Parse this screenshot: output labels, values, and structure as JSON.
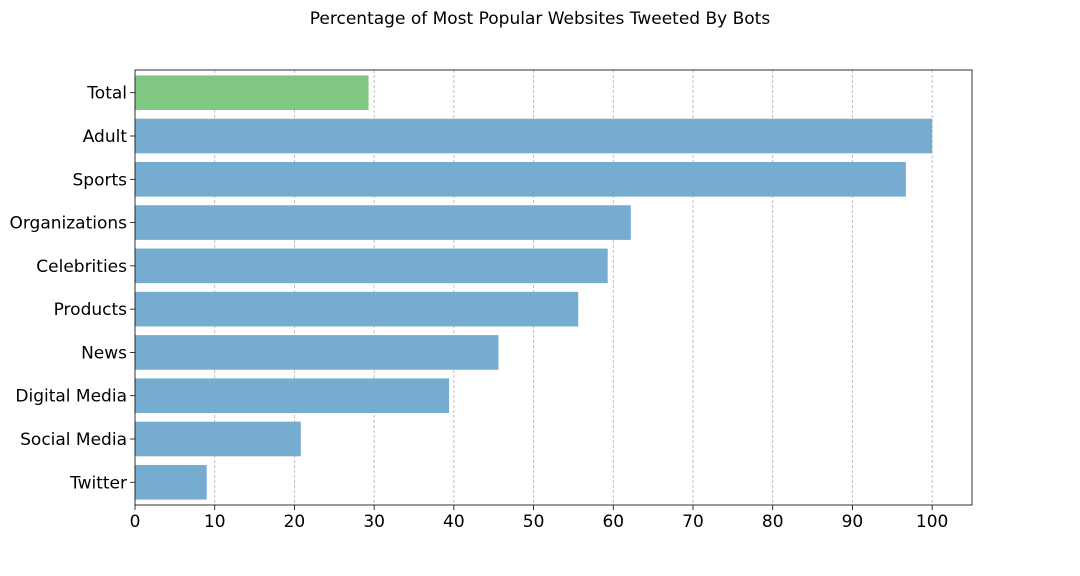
{
  "chart_data": {
    "type": "bar",
    "orientation": "horizontal",
    "title": "Percentage of Most Popular Websites Tweeted By Bots",
    "xlabel": "",
    "ylabel": "",
    "xlim": [
      0,
      105
    ],
    "xticks": [
      0,
      10,
      20,
      30,
      40,
      50,
      60,
      70,
      80,
      90,
      100
    ],
    "grid": "vertical dashed",
    "categories": [
      "Total",
      "Adult",
      "Sports",
      "Organizations",
      "Celebrities",
      "Products",
      "News",
      "Digital Media",
      "Social Media",
      "Twitter"
    ],
    "values": [
      29.3,
      100.0,
      96.7,
      62.2,
      59.3,
      55.6,
      45.6,
      39.4,
      20.8,
      9.0
    ],
    "colors": [
      "#81c784",
      "#77acd1",
      "#77acd1",
      "#77acd1",
      "#77acd1",
      "#77acd1",
      "#77acd1",
      "#77acd1",
      "#77acd1",
      "#77acd1"
    ]
  }
}
